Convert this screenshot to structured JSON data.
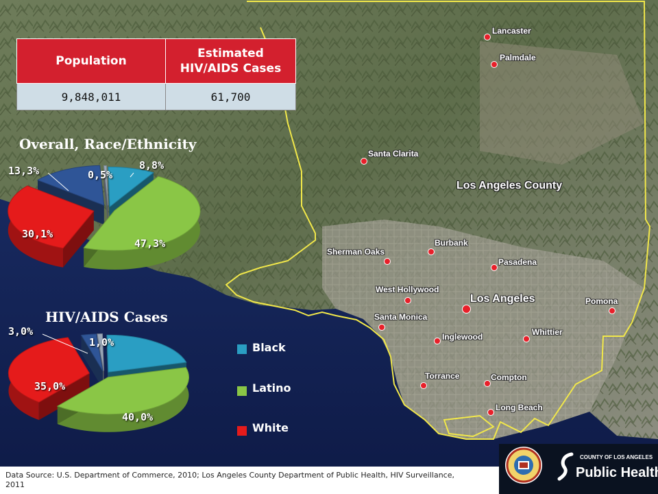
{
  "table": {
    "headers": [
      "Population",
      "Estimated HIV/AIDS Cases"
    ],
    "header_lines": [
      "Estimated",
      "HIV/AIDS Cases"
    ],
    "rows": [
      [
        "9,848,011",
        "61,700"
      ]
    ]
  },
  "pie_overall": {
    "title": "Overall, Race/Ethnicity",
    "labels": [
      "13,3%",
      "0,5%",
      "8,8%",
      "30,1%",
      "47,3%"
    ]
  },
  "pie_cases": {
    "title": "HIV/AIDS Cases",
    "labels": [
      "3,0%",
      "1,0%",
      "35,0%",
      "40,0%"
    ]
  },
  "legend": {
    "items": [
      {
        "label": "Black",
        "color": "#2a9ec3"
      },
      {
        "label": "Latino",
        "color": "#8ac646"
      },
      {
        "label": "White",
        "color": "#e51b1b"
      }
    ]
  },
  "chart_data": [
    {
      "type": "pie",
      "title": "Overall, Race/Ethnicity",
      "slices": [
        {
          "category": "Black",
          "value": 8.8,
          "label": "8,8%",
          "color": "#2a9ec3"
        },
        {
          "category": "Latino",
          "value": 47.3,
          "label": "47,3%",
          "color": "#8ac646"
        },
        {
          "category": "White",
          "value": 30.1,
          "label": "30,1%",
          "color": "#e51b1b"
        },
        {
          "category": "",
          "value": 13.3,
          "label": "13,3%",
          "color": "#2f5597"
        },
        {
          "category": "",
          "value": 0.5,
          "label": "0,5%",
          "color": "#9aa7b8"
        }
      ]
    },
    {
      "type": "pie",
      "title": "HIV/AIDS Cases",
      "slices": [
        {
          "category": "Black",
          "value": 21.0,
          "label": "",
          "color": "#2a9ec3"
        },
        {
          "category": "Latino",
          "value": 40.0,
          "label": "40,0%",
          "color": "#8ac646"
        },
        {
          "category": "White",
          "value": 35.0,
          "label": "35,0%",
          "color": "#e51b1b"
        },
        {
          "category": "",
          "value": 3.0,
          "label": "3,0%",
          "color": "#2f5597"
        },
        {
          "category": "",
          "value": 1.0,
          "label": "1,0%",
          "color": "#9aa7b8"
        }
      ]
    }
  ],
  "map": {
    "county_label": "Los Angeles County",
    "cities": [
      "Lancaster",
      "Palmdale",
      "Santa Clarita",
      "Burbank",
      "Sherman Oaks",
      "Pasadena",
      "West Hollywood",
      "Los Angeles",
      "Pomona",
      "Santa Monica",
      "Whittier",
      "Inglewood",
      "Torrance",
      "Compton",
      "Long Beach"
    ]
  },
  "source": {
    "text": "Data Source:  U.S. Department of Commerce, 2010; Los Angeles County Department of Public Health, HIV Surveillance, 2011"
  },
  "logo": {
    "county_line": "COUNTY OF LOS ANGELES",
    "name": "Public Health"
  }
}
